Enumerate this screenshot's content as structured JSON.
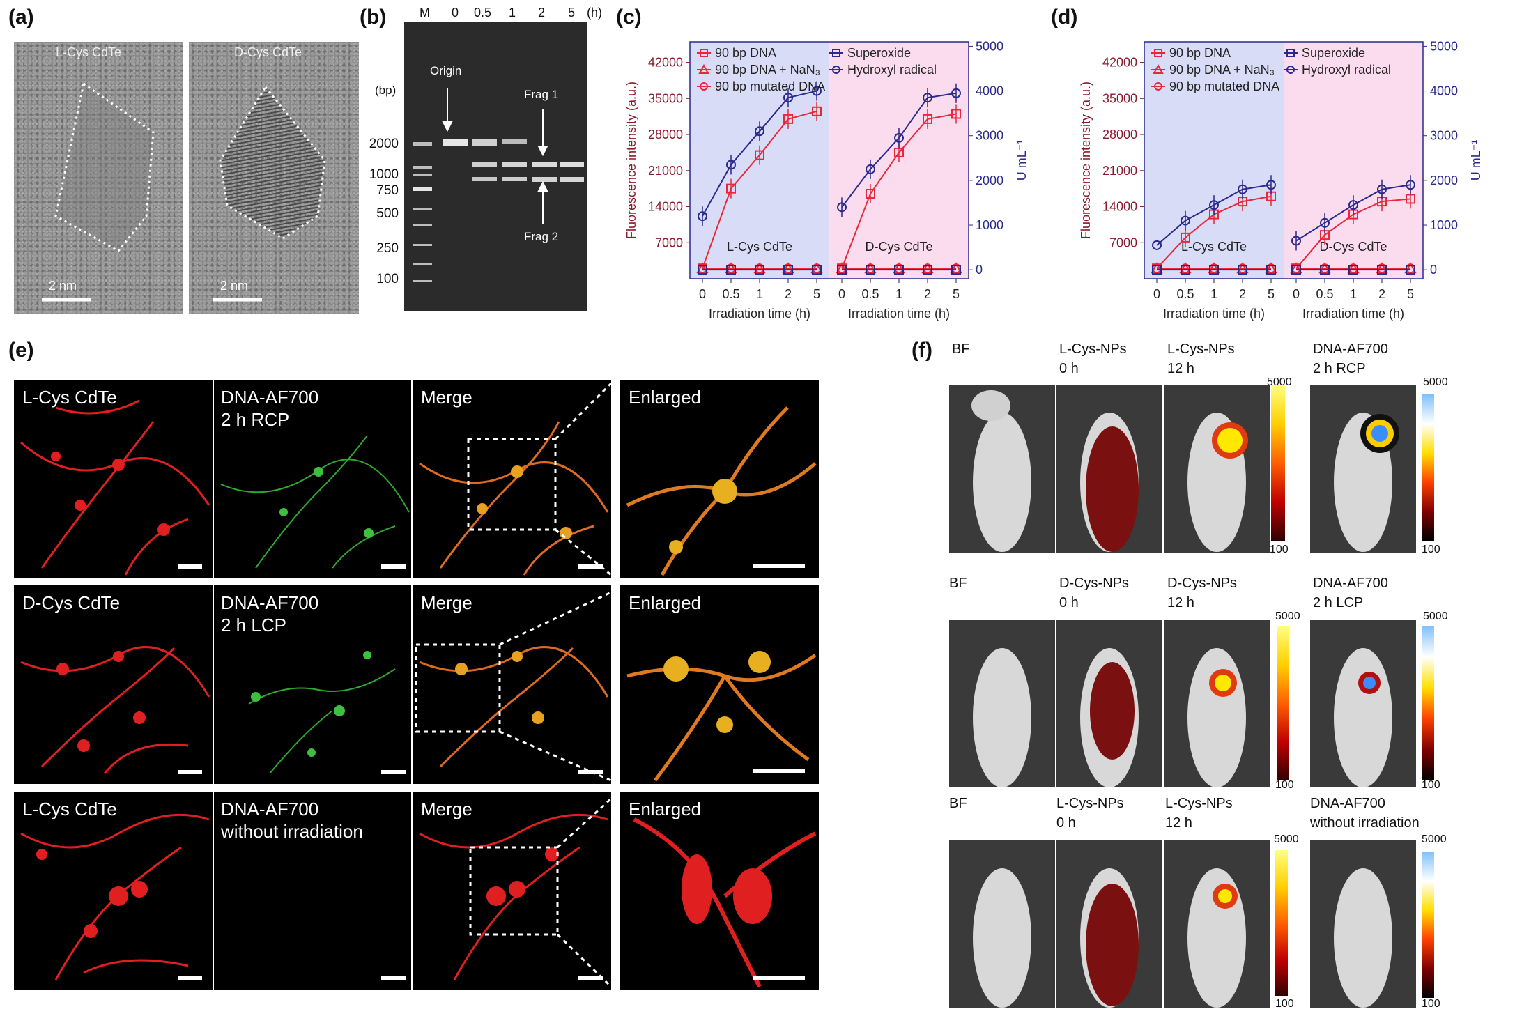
{
  "panels": {
    "a": {
      "label": "(a)",
      "left_title": "L-Cys CdTe",
      "right_title": "D-Cys CdTe",
      "scale_left": "2 nm",
      "scale_right": "2 nm"
    },
    "b": {
      "label": "(b)",
      "lanes": [
        "M",
        "0",
        "0.5",
        "1",
        "2",
        "5",
        "(h)"
      ],
      "bp_unit": "(bp)",
      "bp_markers": [
        "2000",
        "1000",
        "750",
        "500",
        "250",
        "100"
      ],
      "annotations": {
        "origin": "Origin",
        "frag1": "Frag 1",
        "frag2": "Frag 2"
      }
    },
    "c": {
      "label": "(c)"
    },
    "d": {
      "label": "(d)"
    },
    "e": {
      "label": "(e)",
      "rows": [
        {
          "c1": "L-Cys CdTe",
          "c2a": "DNA-AF700",
          "c2b": "2 h RCP",
          "c3": "Merge",
          "c4": "Enlarged"
        },
        {
          "c1": "D-Cys CdTe",
          "c2a": "DNA-AF700",
          "c2b": "2 h LCP",
          "c3": "Merge",
          "c4": "Enlarged"
        },
        {
          "c1": "L-Cys CdTe",
          "c2a": "DNA-AF700",
          "c2b": "without irradiation",
          "c3": "Merge",
          "c4": "Enlarged"
        }
      ]
    },
    "f": {
      "label": "(f)",
      "rows": [
        {
          "bf": "BF",
          "p1a": "L-Cys-NPs",
          "p1b": "0 h",
          "p2a": "L-Cys-NPs",
          "p2b": "12 h",
          "p3a": "DNA-AF700",
          "p3b": "2 h RCP",
          "max1": "5000",
          "min1": "100",
          "max2": "5000",
          "min2": "100"
        },
        {
          "bf": "BF",
          "p1a": "D-Cys-NPs",
          "p1b": "0 h",
          "p2a": "D-Cys-NPs",
          "p2b": "12 h",
          "p3a": "DNA-AF700",
          "p3b": "2 h LCP",
          "max1": "5000",
          "min1": "100",
          "max2": "5000",
          "min2": "100"
        },
        {
          "bf": "BF",
          "p1a": "L-Cys-NPs",
          "p1b": "0 h",
          "p2a": "L-Cys-NPs",
          "p2b": "12 h",
          "p3a": "DNA-AF700",
          "p3b": "without irradiation",
          "max1": "5000",
          "min1": "100",
          "max2": "5000",
          "min2": "100"
        }
      ]
    }
  },
  "chart_data": [
    {
      "type": "line",
      "panel": "c",
      "x": [
        "0",
        "0.5",
        "1",
        "2",
        "5"
      ],
      "xlabel": "Irradiation time (h)",
      "ylabel_left": "Fluorescence intensity (a.u.)",
      "ylabel_right": "U mL⁻¹",
      "yticks_left": [
        "7000",
        "14000",
        "21000",
        "28000",
        "35000",
        "42000"
      ],
      "yticks_right": [
        "0",
        "1000",
        "2000",
        "3000",
        "4000",
        "5000"
      ],
      "ylim_left": [
        0,
        46000
      ],
      "ylim_right": [
        0,
        5300
      ],
      "group_labels": [
        "L-Cys CdTe",
        "D-Cys CdTe"
      ],
      "legend": [
        "90 bp DNA",
        "90 bp DNA + NaN₃",
        "90 bp mutated DNA",
        "Superoxide",
        "Hydroxyl radical"
      ],
      "groups": [
        {
          "name": "L-Cys CdTe",
          "series": [
            {
              "name": "90 bp DNA",
              "axis": "left",
              "values": [
                2000,
                17500,
                24000,
                31000,
                32500
              ]
            },
            {
              "name": "90 bp DNA + NaN₃",
              "axis": "left",
              "values": [
                2000,
                2000,
                2000,
                2000,
                2000
              ]
            },
            {
              "name": "90 bp mutated DNA",
              "axis": "left",
              "values": [
                2000,
                2000,
                2000,
                2000,
                2000
              ]
            },
            {
              "name": "Superoxide",
              "axis": "right",
              "values": [
                0,
                0,
                0,
                0,
                0
              ]
            },
            {
              "name": "Hydroxyl radical",
              "axis": "right",
              "values": [
                1200,
                2350,
                3100,
                3850,
                4000
              ]
            }
          ]
        },
        {
          "name": "D-Cys CdTe",
          "series": [
            {
              "name": "90 bp DNA",
              "axis": "left",
              "values": [
                2000,
                16500,
                24500,
                31000,
                32000
              ]
            },
            {
              "name": "90 bp DNA + NaN₃",
              "axis": "left",
              "values": [
                2000,
                2000,
                2000,
                2000,
                2000
              ]
            },
            {
              "name": "90 bp mutated DNA",
              "axis": "left",
              "values": [
                2000,
                2000,
                2000,
                2000,
                2000
              ]
            },
            {
              "name": "Superoxide",
              "axis": "right",
              "values": [
                0,
                0,
                0,
                0,
                0
              ]
            },
            {
              "name": "Hydroxyl radical",
              "axis": "right",
              "values": [
                1400,
                2250,
                2950,
                3850,
                3950
              ]
            }
          ]
        }
      ],
      "colors": {
        "red": "#e8283a",
        "blue": "#2a2a8c",
        "bg_left": "#d9dcf7",
        "bg_right": "#fbdcef"
      }
    },
    {
      "type": "line",
      "panel": "d",
      "x": [
        "0",
        "0.5",
        "1",
        "2",
        "5"
      ],
      "xlabel": "Irradiation time (h)",
      "ylabel_left": "Fluorescence intensity (a.u.)",
      "ylabel_right": "U mL⁻¹",
      "yticks_left": [
        "7000",
        "14000",
        "21000",
        "28000",
        "35000",
        "42000"
      ],
      "yticks_right": [
        "0",
        "1000",
        "2000",
        "3000",
        "4000",
        "5000"
      ],
      "ylim_left": [
        0,
        46000
      ],
      "ylim_right": [
        0,
        5300
      ],
      "group_labels": [
        "L-Cys CdTe",
        "D-Cys CdTe"
      ],
      "legend": [
        "90 bp DNA",
        "90 bp DNA + NaN₃",
        "90 bp mutated DNA",
        "Superoxide",
        "Hydroxyl radical"
      ],
      "groups": [
        {
          "name": "L-Cys CdTe",
          "series": [
            {
              "name": "90 bp DNA",
              "axis": "left",
              "values": [
                2000,
                8000,
                12500,
                15000,
                16000
              ]
            },
            {
              "name": "90 bp DNA + NaN₃",
              "axis": "left",
              "values": [
                2000,
                2000,
                2000,
                2000,
                2000
              ]
            },
            {
              "name": "90 bp mutated DNA",
              "axis": "left",
              "values": [
                2000,
                2000,
                2000,
                2000,
                2000
              ]
            },
            {
              "name": "Superoxide",
              "axis": "right",
              "values": [
                0,
                0,
                0,
                0,
                0
              ]
            },
            {
              "name": "Hydroxyl radical",
              "axis": "right",
              "values": [
                550,
                1100,
                1450,
                1800,
                1900
              ]
            }
          ]
        },
        {
          "name": "D-Cys CdTe",
          "series": [
            {
              "name": "90 bp DNA",
              "axis": "left",
              "values": [
                2000,
                8500,
                12500,
                15000,
                15500
              ]
            },
            {
              "name": "90 bp DNA + NaN₃",
              "axis": "left",
              "values": [
                2000,
                2000,
                2000,
                2000,
                2000
              ]
            },
            {
              "name": "90 bp mutated DNA",
              "axis": "left",
              "values": [
                2000,
                2000,
                2000,
                2000,
                2000
              ]
            },
            {
              "name": "Superoxide",
              "axis": "right",
              "values": [
                0,
                0,
                0,
                0,
                0
              ]
            },
            {
              "name": "Hydroxyl radical",
              "axis": "right",
              "values": [
                650,
                1050,
                1450,
                1800,
                1900
              ]
            }
          ]
        }
      ],
      "colors": {
        "red": "#e8283a",
        "blue": "#2a2a8c",
        "bg_left": "#d9dcf7",
        "bg_right": "#fbdcef"
      }
    }
  ]
}
